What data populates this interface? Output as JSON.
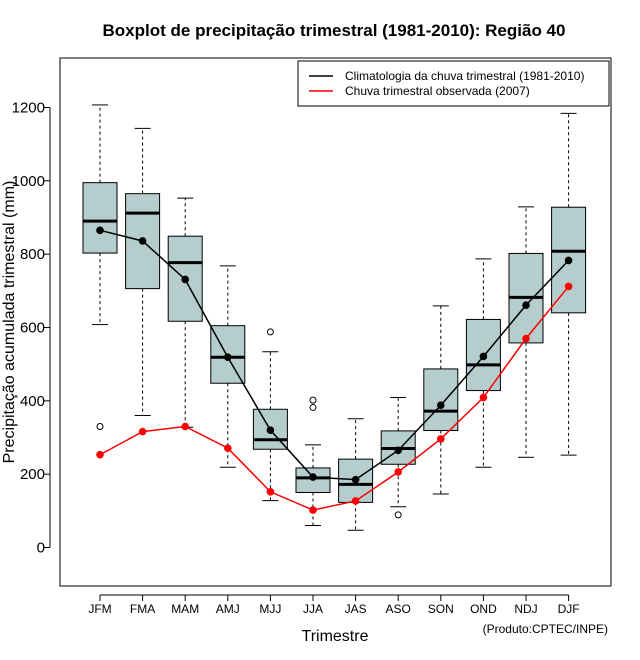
{
  "chart_data": {
    "type": "boxplot",
    "title": "Boxplot de precipitação trimestral (1981-2010): Região 40",
    "xlabel": "Trimestre",
    "ylabel": "Precipitação acumulada trimestral (mm)",
    "credit": "(Produto:CPTEC/INPE)",
    "ylim": [
      -105,
      1335
    ],
    "yticks": [
      0,
      200,
      400,
      600,
      800,
      1000,
      1200
    ],
    "ytick_labels": [
      "0",
      "200",
      "400",
      "600",
      "800",
      "1000",
      "1200"
    ],
    "categories": [
      "JFM",
      "FMA",
      "MAM",
      "AMJ",
      "MJJ",
      "JJA",
      "JAS",
      "ASO",
      "SON",
      "OND",
      "NDJ",
      "DJF"
    ],
    "boxes": [
      {
        "whisker_low": 608,
        "q1": 803,
        "median": 890,
        "q3": 995,
        "whisker_high": 1207,
        "outliers": [
          330
        ]
      },
      {
        "whisker_low": 360,
        "q1": 706,
        "median": 912,
        "q3": 965,
        "whisker_high": 1143,
        "outliers": []
      },
      {
        "whisker_low": 328,
        "q1": 617,
        "median": 777,
        "q3": 849,
        "whisker_high": 953,
        "outliers": []
      },
      {
        "whisker_low": 219,
        "q1": 448,
        "median": 519,
        "q3": 605,
        "whisker_high": 768,
        "outliers": []
      },
      {
        "whisker_low": 128,
        "q1": 268,
        "median": 294,
        "q3": 377,
        "whisker_high": 534,
        "outliers": [
          588
        ]
      },
      {
        "whisker_low": 60,
        "q1": 150,
        "median": 190,
        "q3": 217,
        "whisker_high": 280,
        "outliers": [
          402,
          382
        ]
      },
      {
        "whisker_low": 47,
        "q1": 123,
        "median": 172,
        "q3": 241,
        "whisker_high": 351,
        "outliers": []
      },
      {
        "whisker_low": 111,
        "q1": 227,
        "median": 270,
        "q3": 318,
        "whisker_high": 409,
        "outliers": [
          89
        ]
      },
      {
        "whisker_low": 146,
        "q1": 319,
        "median": 372,
        "q3": 487,
        "whisker_high": 659,
        "outliers": []
      },
      {
        "whisker_low": 219,
        "q1": 428,
        "median": 498,
        "q3": 622,
        "whisker_high": 787,
        "outliers": []
      },
      {
        "whisker_low": 246,
        "q1": 558,
        "median": 682,
        "q3": 802,
        "whisker_high": 929,
        "outliers": []
      },
      {
        "whisker_low": 252,
        "q1": 640,
        "median": 808,
        "q3": 928,
        "whisker_high": 1184,
        "outliers": []
      }
    ],
    "series": [
      {
        "name": "Climatologia da chuva trimestral (1981-2010)",
        "color": "#000000",
        "values": [
          865,
          836,
          731,
          519,
          320,
          192,
          185,
          265,
          388,
          521,
          661,
          783
        ]
      },
      {
        "name": "Chuva trimestral observada (2007)",
        "color": "#ff0000",
        "values": [
          253,
          316,
          330,
          271,
          152,
          102,
          127,
          206,
          296,
          409,
          570,
          712
        ]
      }
    ],
    "box_fill": "#b5cdcd",
    "legend_position": "top-right"
  }
}
